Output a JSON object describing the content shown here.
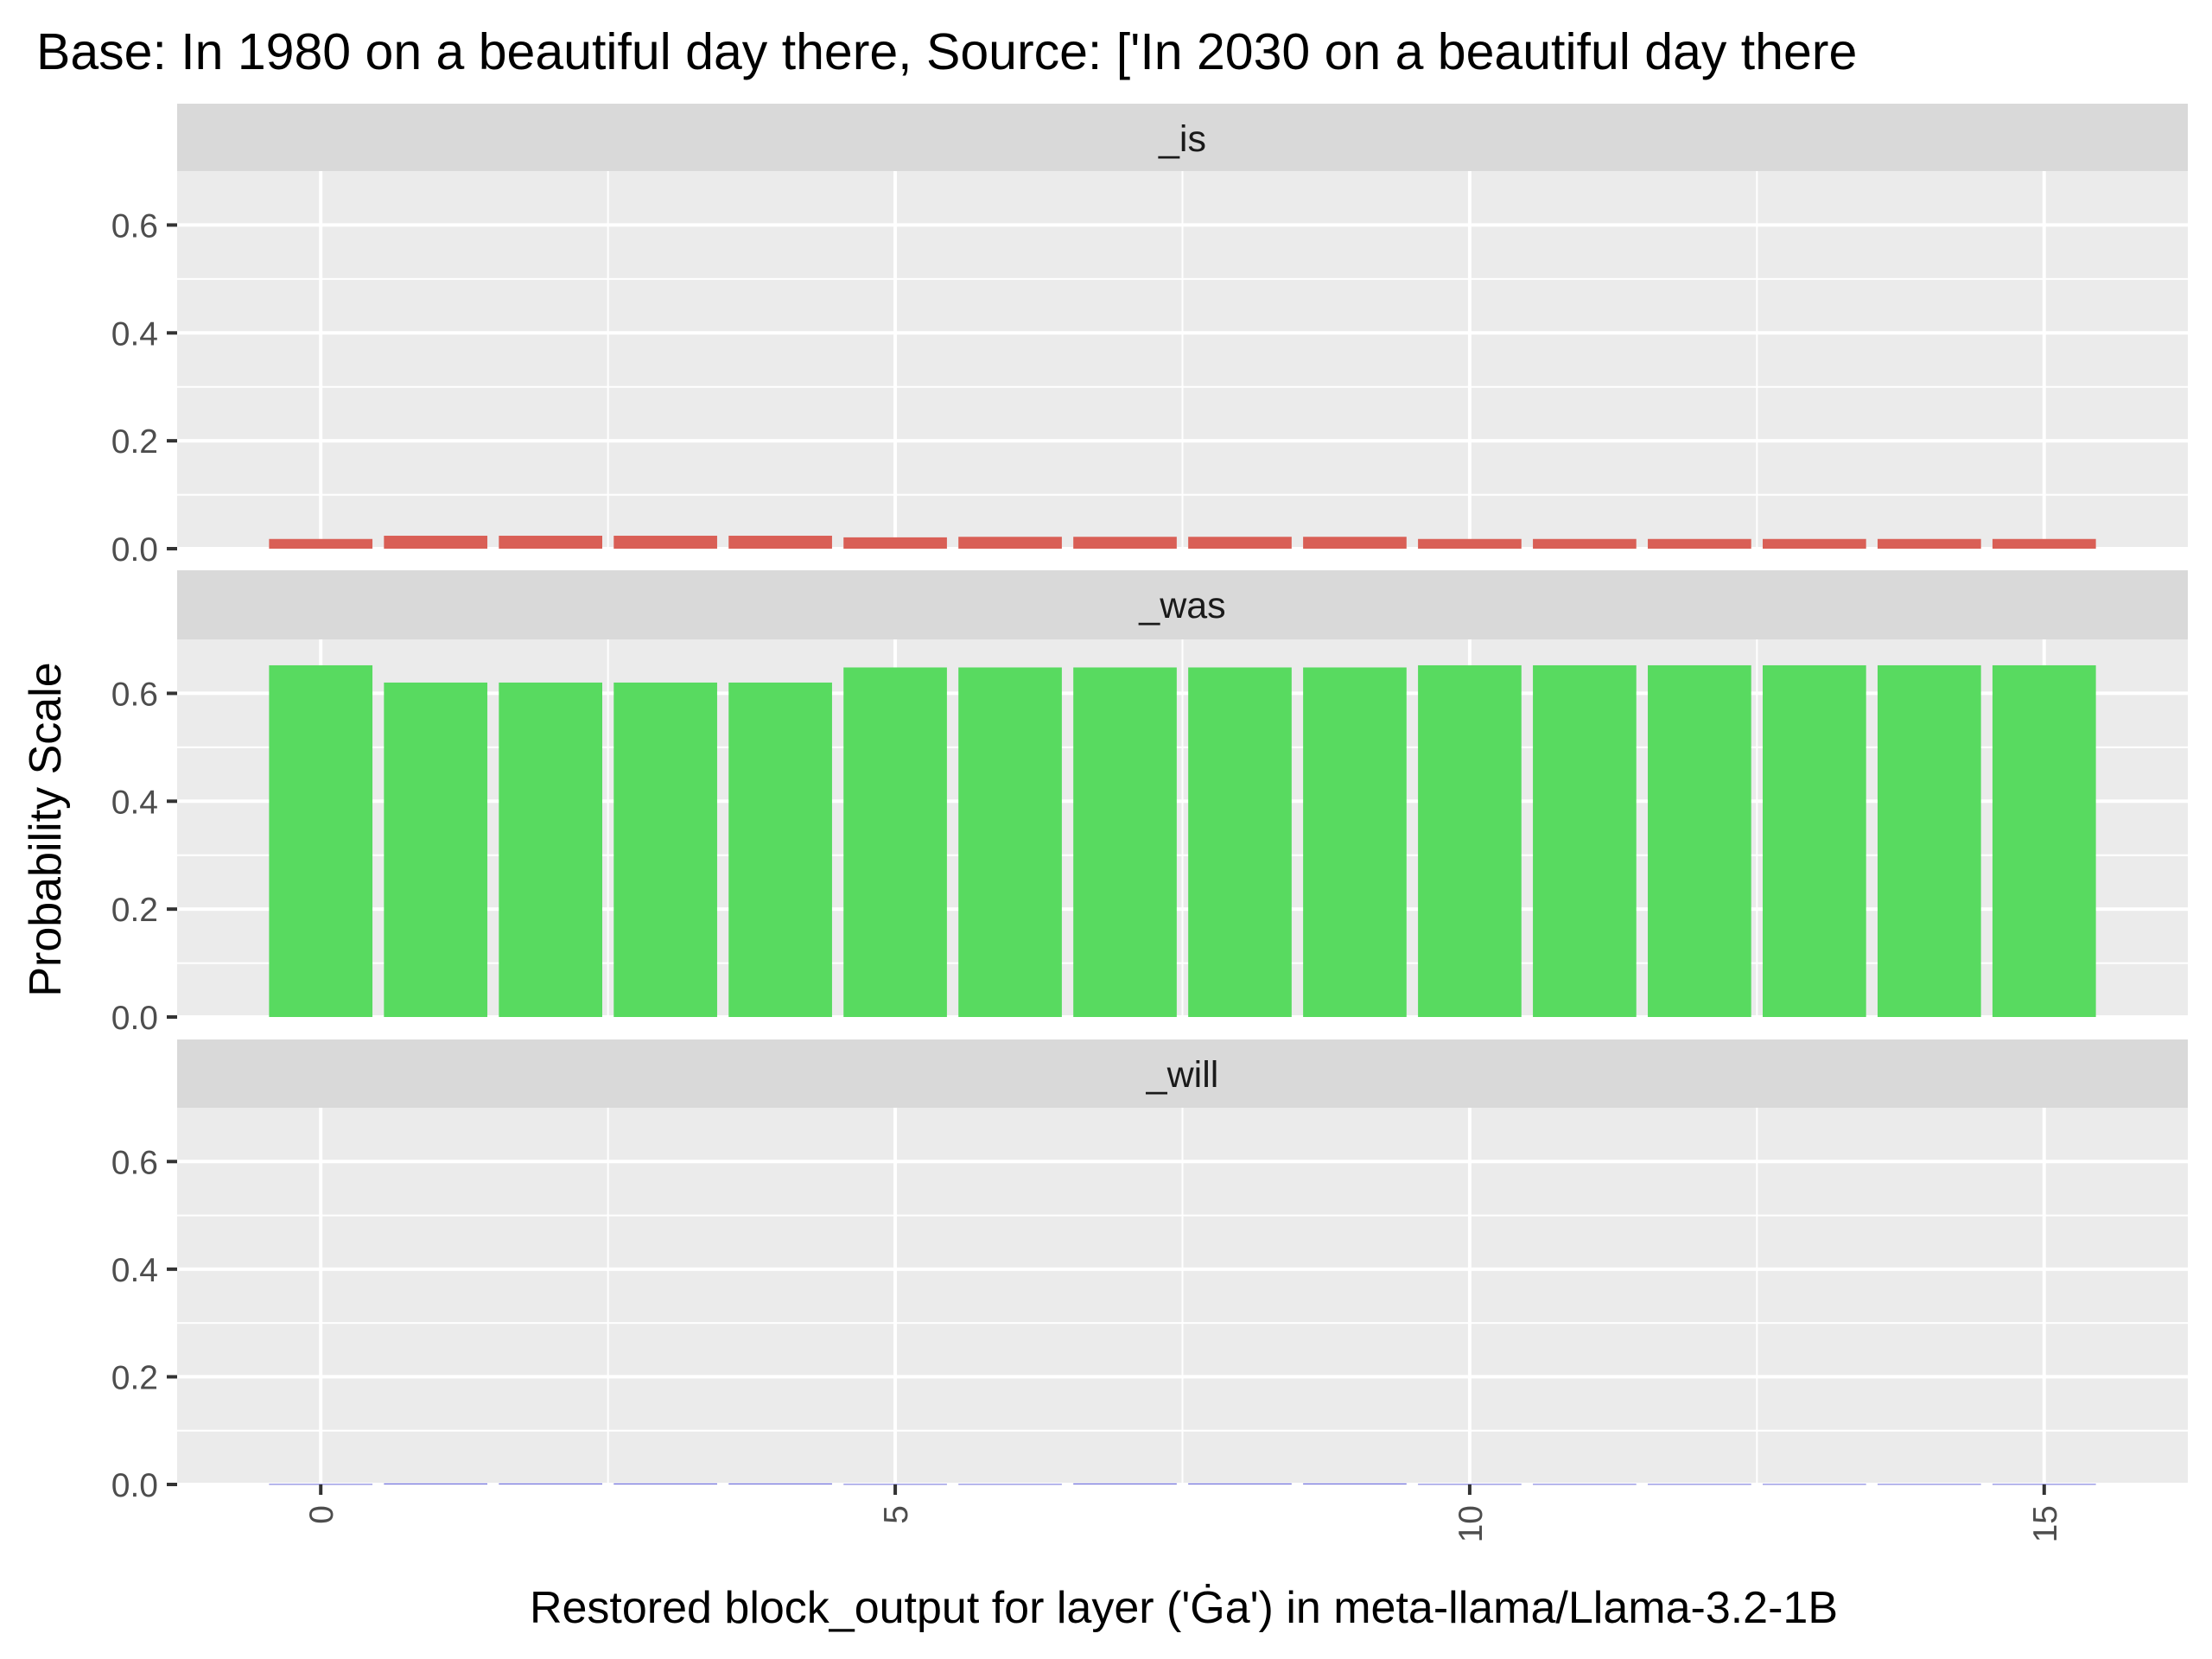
{
  "chart_data": {
    "type": "bar",
    "title": "Base: In 1980 on a beautiful day there, Source: ['In 2030 on a beautiful day there",
    "xlabel": "Restored block_output for layer ('Ġa') in meta-llama/Llama-3.2-1B",
    "ylabel": "Probability Scale",
    "x_ticks": [
      "0",
      "5",
      "10",
      "15"
    ],
    "x_tick_values": [
      0,
      5,
      10,
      15
    ],
    "y_ticks": [
      "0.0",
      "0.2",
      "0.4",
      "0.6"
    ],
    "y_tick_values": [
      0,
      0.2,
      0.4,
      0.6
    ],
    "ylim": [
      0,
      0.7
    ],
    "xlim": [
      -1.25,
      16.25
    ],
    "grid": true,
    "x": [
      0,
      1,
      2,
      3,
      4,
      5,
      6,
      7,
      8,
      9,
      10,
      11,
      12,
      13,
      14,
      15
    ],
    "facets": [
      {
        "strip_label": "_is",
        "color": "#D95F56",
        "values": [
          0.018,
          0.024,
          0.024,
          0.024,
          0.024,
          0.021,
          0.022,
          0.022,
          0.022,
          0.022,
          0.018,
          0.018,
          0.018,
          0.018,
          0.018,
          0.018
        ]
      },
      {
        "strip_label": "_was",
        "color": "#58DA60",
        "values": [
          0.652,
          0.62,
          0.62,
          0.62,
          0.62,
          0.648,
          0.648,
          0.648,
          0.648,
          0.648,
          0.652,
          0.652,
          0.652,
          0.652,
          0.652,
          0.652
        ]
      },
      {
        "strip_label": "_will",
        "color": "#6F6FD9",
        "values": [
          0.001,
          0.002,
          0.002,
          0.002,
          0.002,
          0.001,
          0.001,
          0.002,
          0.002,
          0.002,
          0.001,
          0.001,
          0.001,
          0.001,
          0.001,
          0.001
        ]
      }
    ],
    "colors": {
      "panel_bg": "#EBEBEB",
      "strip_bg": "#D9D9D9",
      "grid": "#FFFFFF",
      "tick": "#333333",
      "tick_text": "#4D4D4D"
    }
  }
}
